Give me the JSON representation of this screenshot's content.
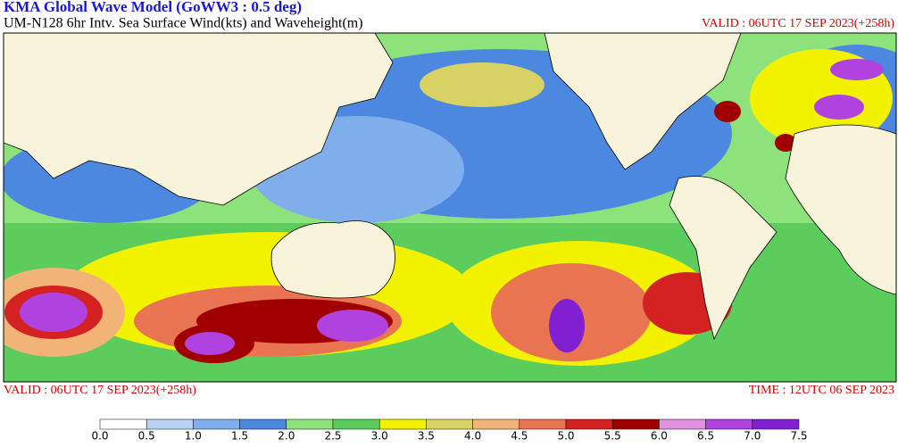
{
  "header": {
    "title": "KMA  Global Wave Model (GoWW3 : 0.5 deg)",
    "subtitle": "UM-N128  6hr Intv. Sea Surface Wind(kts) and Waveheight(m)",
    "valid_top": "VALID : 06UTC 17 SEP 2023(+258h)"
  },
  "footer": {
    "valid": "VALID : 06UTC 17 SEP 2023(+258h)",
    "time": "TIME : 12UTC 06 SEP 2023"
  },
  "legend": {
    "labels": [
      "0.0",
      "0.5",
      "1.0",
      "1.5",
      "2.0",
      "2.5",
      "3.0",
      "3.5",
      "4.0",
      "4.5",
      "5.0",
      "5.5",
      "6.0",
      "6.5",
      "7.0",
      "7.5"
    ],
    "colors": [
      "#ffffff",
      "#b8d4f2",
      "#80aeea",
      "#4c88e0",
      "#8ee27c",
      "#5ccc5c",
      "#f2f200",
      "#d8d264",
      "#f2b476",
      "#e87452",
      "#d42222",
      "#a00000",
      "#e092e0",
      "#b042e0",
      "#8020d0"
    ]
  }
}
